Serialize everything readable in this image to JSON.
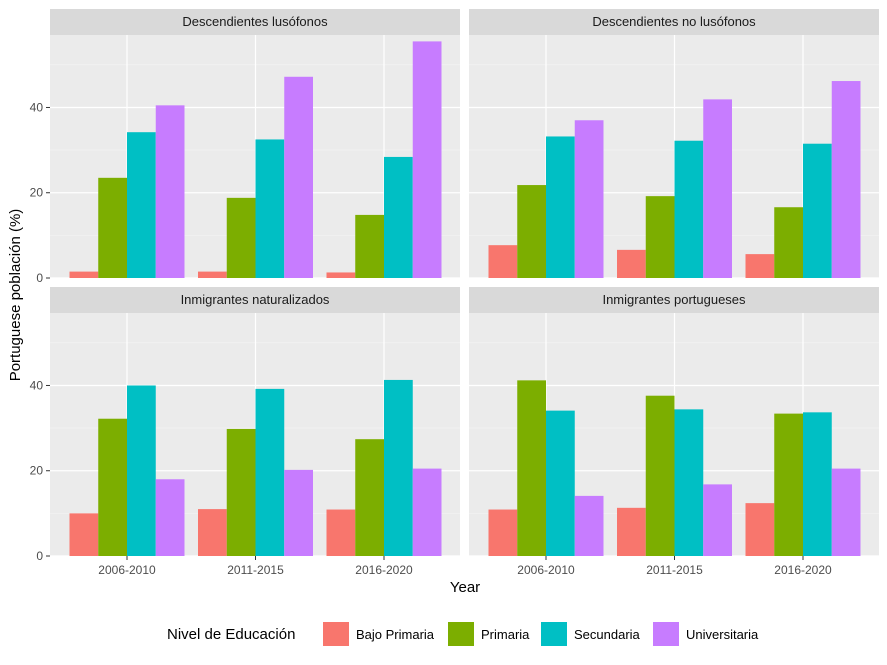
{
  "chart_data": {
    "type": "bar",
    "facets": [
      "Descendientes lusófonos",
      "Descendientes no lusófonos",
      "Inmigrantes naturalizados",
      "Inmigrantes portugueses"
    ],
    "categories": [
      "2006-2010",
      "2011-2015",
      "2016-2020"
    ],
    "xlabel": "Year",
    "ylabel": "Portuguese población (%)",
    "ylim": [
      0,
      57
    ],
    "yticks": [
      0,
      20,
      40
    ],
    "legend_title": "Nivel de Educación",
    "legend_position": "bottom",
    "series": [
      {
        "name": "Bajo Primaria",
        "color": "#F8766D"
      },
      {
        "name": "Primaria",
        "color": "#7CAE00"
      },
      {
        "name": "Secundaria",
        "color": "#00BFC4"
      },
      {
        "name": "Universitaria",
        "color": "#C77CFF"
      }
    ],
    "panels": [
      {
        "facet": "Descendientes lusófonos",
        "values": [
          [
            1.5,
            23.5,
            34.2,
            40.5
          ],
          [
            1.5,
            18.8,
            32.5,
            47.2
          ],
          [
            1.3,
            14.8,
            28.4,
            55.5
          ]
        ]
      },
      {
        "facet": "Descendientes no lusófonos",
        "values": [
          [
            7.7,
            21.8,
            33.2,
            37.0
          ],
          [
            6.6,
            19.2,
            32.2,
            41.9
          ],
          [
            5.6,
            16.6,
            31.5,
            46.2
          ]
        ]
      },
      {
        "facet": "Inmigrantes naturalizados",
        "values": [
          [
            10.0,
            32.2,
            40.0,
            18.0
          ],
          [
            11.0,
            29.8,
            39.2,
            20.2
          ],
          [
            10.9,
            27.4,
            41.3,
            20.5
          ]
        ]
      },
      {
        "facet": "Inmigrantes portugueses",
        "values": [
          [
            10.9,
            41.2,
            34.1,
            14.1
          ],
          [
            11.3,
            37.6,
            34.4,
            16.8
          ],
          [
            12.4,
            33.4,
            33.7,
            20.5
          ]
        ]
      }
    ]
  }
}
